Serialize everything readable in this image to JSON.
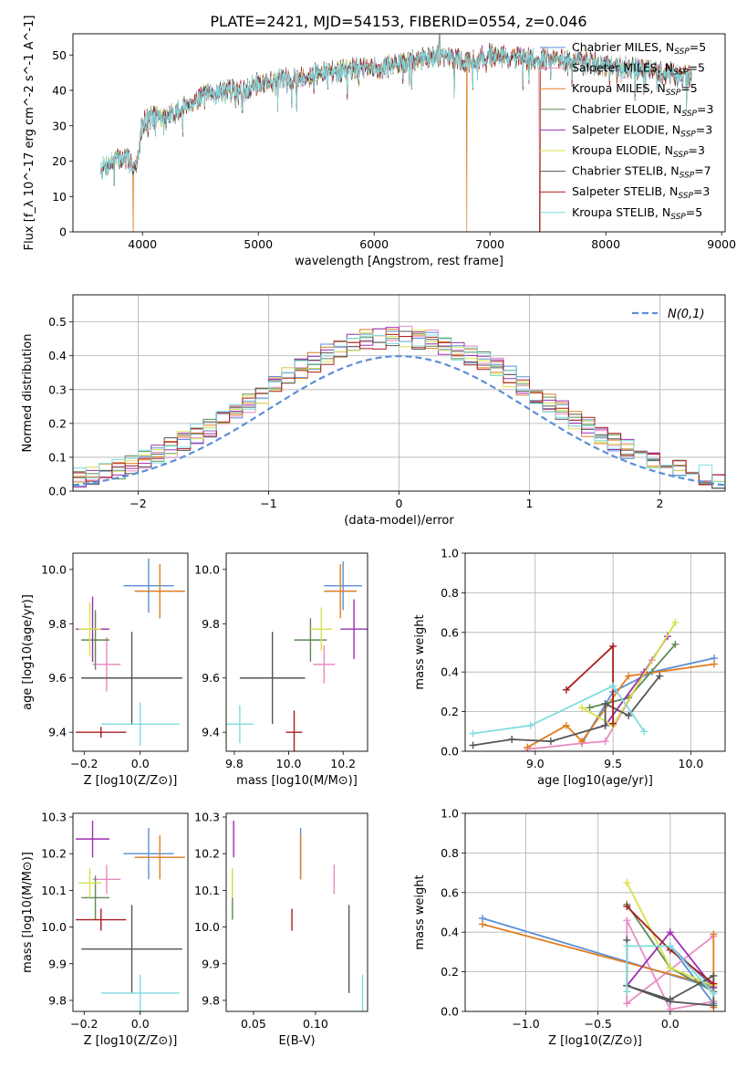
{
  "figure_title": "PLATE=2421, MJD=54153, FIBERID=0554, z=0.046",
  "colors": {
    "Chabrier MILES": "#5b8fd6",
    "Salpeter MILES": "#e98bc3",
    "Kroupa MILES": "#e07e20",
    "Chabrier ELODIE": "#5f8a55",
    "Salpeter ELODIE": "#9c2fb0",
    "Kroupa ELODIE": "#d8e04a",
    "Chabrier STELIB": "#555555",
    "Salpeter STELIB": "#a81d1d",
    "Kroupa STELIB": "#7fdce0",
    "gauss": "#5b8fd6"
  },
  "models": [
    {
      "name": "Chabrier MILES",
      "nssp": 5
    },
    {
      "name": "Salpeter MILES",
      "nssp": 5
    },
    {
      "name": "Kroupa MILES",
      "nssp": 5
    },
    {
      "name": "Chabrier ELODIE",
      "nssp": 3
    },
    {
      "name": "Salpeter ELODIE",
      "nssp": 3
    },
    {
      "name": "Kroupa ELODIE",
      "nssp": 3
    },
    {
      "name": "Chabrier STELIB",
      "nssp": 7
    },
    {
      "name": "Salpeter STELIB",
      "nssp": 3
    },
    {
      "name": "Kroupa STELIB",
      "nssp": 5
    }
  ],
  "chart_data": [
    {
      "id": "spectrum",
      "type": "line",
      "xlabel": "wavelength [Angstrom, rest frame]",
      "ylabel": "Flux [f_λ 10^-17 erg cm^-2 s^-1 A^-1]",
      "xlim": [
        3400,
        9030
      ],
      "ylim": [
        0,
        56
      ],
      "xticks": [
        4000,
        5000,
        6000,
        7000,
        8000,
        9000
      ],
      "yticks": [
        0,
        10,
        20,
        30,
        40,
        50
      ],
      "legend": "right",
      "continuum": {
        "x": [
          3650,
          3750,
          3850,
          3950,
          4000,
          4100,
          4200,
          4300,
          4400,
          4500,
          4700,
          4861,
          5000,
          5200,
          5400,
          5600,
          5800,
          6000,
          6300,
          6563,
          6800,
          7000,
          7200,
          7500,
          7800,
          8000,
          8300,
          8500,
          8700
        ],
        "y": [
          18,
          20,
          21,
          18,
          31,
          33,
          32,
          34,
          36,
          38,
          40,
          40,
          42,
          43,
          44,
          45,
          46,
          46,
          48,
          50,
          48,
          50,
          49,
          49,
          48,
          47,
          46,
          45,
          44
        ]
      },
      "drops": [
        {
          "model": "Kroupa MILES",
          "x": 3920,
          "from": 10
        },
        {
          "model": "Kroupa MILES",
          "x": 6800,
          "from": 47
        },
        {
          "model": "Salpeter STELIB",
          "x": 7430,
          "from": 49
        }
      ]
    },
    {
      "id": "residuals",
      "type": "step",
      "xlabel": "(data-model)/error",
      "ylabel": "Normed distribution",
      "xlim": [
        -2.5,
        2.5
      ],
      "ylim": [
        0,
        0.58
      ],
      "xticks": [
        -2,
        -1,
        0,
        1,
        2
      ],
      "yticks": [
        0.0,
        0.1,
        0.2,
        0.3,
        0.4,
        0.5
      ],
      "legend": "top-right",
      "gauss_label": "N(0,1)",
      "bin_width": 0.1
    },
    {
      "id": "age-vs-Z",
      "type": "errorbar",
      "xlabel": "Z [log10(Z/Z⊙)]",
      "ylabel": "age  [log10(age/yr)]",
      "xlim": [
        -0.24,
        0.17
      ],
      "ylim": [
        9.33,
        10.06
      ],
      "xticks": [
        -0.2,
        0.0
      ],
      "yticks": [
        9.4,
        9.6,
        9.8,
        10.0
      ],
      "points": [
        {
          "model": "Chabrier MILES",
          "x": 0.03,
          "xerr": 0.09,
          "y": 9.94,
          "yerr": 0.1
        },
        {
          "model": "Salpeter MILES",
          "x": -0.12,
          "xerr": 0.05,
          "y": 9.65,
          "yerr": 0.1
        },
        {
          "model": "Kroupa MILES",
          "x": 0.07,
          "xerr": 0.09,
          "y": 9.92,
          "yerr": 0.1
        },
        {
          "model": "Chabrier ELODIE",
          "x": -0.16,
          "xerr": 0.05,
          "y": 9.74,
          "yerr": 0.11
        },
        {
          "model": "Salpeter ELODIE",
          "x": -0.17,
          "xerr": 0.06,
          "y": 9.78,
          "yerr": 0.12
        },
        {
          "model": "Kroupa ELODIE",
          "x": -0.18,
          "xerr": 0.04,
          "y": 9.78,
          "yerr": 0.1
        },
        {
          "model": "Chabrier STELIB",
          "x": -0.03,
          "xerr": 0.18,
          "y": 9.6,
          "yerr": 0.17
        },
        {
          "model": "Salpeter STELIB",
          "x": -0.14,
          "xerr": 0.09,
          "y": 9.4,
          "yerr": 0.02
        },
        {
          "model": "Kroupa STELIB",
          "x": 0.0,
          "xerr": 0.14,
          "y": 9.43,
          "yerr": 0.08
        }
      ]
    },
    {
      "id": "age-vs-mass",
      "type": "errorbar",
      "xlabel": "mass [log10(M/M⊙)]",
      "ylabel": "",
      "xlim": [
        9.77,
        10.29
      ],
      "ylim": [
        9.33,
        10.06
      ],
      "xticks": [
        9.8,
        10.0,
        10.2
      ],
      "yticks": [
        9.4,
        9.6,
        9.8,
        10.0
      ],
      "points": [
        {
          "model": "Chabrier MILES",
          "x": 10.2,
          "xerr": 0.07,
          "y": 9.94,
          "yerr": 0.09
        },
        {
          "model": "Salpeter MILES",
          "x": 10.13,
          "xerr": 0.04,
          "y": 9.65,
          "yerr": 0.07
        },
        {
          "model": "Kroupa MILES",
          "x": 10.19,
          "xerr": 0.06,
          "y": 9.92,
          "yerr": 0.1
        },
        {
          "model": "Chabrier ELODIE",
          "x": 10.08,
          "xerr": 0.06,
          "y": 9.74,
          "yerr": 0.08
        },
        {
          "model": "Salpeter ELODIE",
          "x": 10.24,
          "xerr": 0.05,
          "y": 9.78,
          "yerr": 0.11
        },
        {
          "model": "Kroupa ELODIE",
          "x": 10.12,
          "xerr": 0.04,
          "y": 9.78,
          "yerr": 0.08
        },
        {
          "model": "Chabrier STELIB",
          "x": 9.94,
          "xerr": 0.12,
          "y": 9.6,
          "yerr": 0.17
        },
        {
          "model": "Salpeter STELIB",
          "x": 10.02,
          "xerr": 0.03,
          "y": 9.4,
          "yerr": 0.08
        },
        {
          "model": "Kroupa STELIB",
          "x": 9.82,
          "xerr": 0.05,
          "y": 9.43,
          "yerr": 0.07
        }
      ]
    },
    {
      "id": "mass-weight-vs-age",
      "type": "line",
      "xlabel": "age  [log10(age/yr)]",
      "ylabel": "mass weight",
      "xlim": [
        8.55,
        10.22
      ],
      "ylim": [
        0,
        1
      ],
      "xticks": [
        9.0,
        9.5,
        10.0
      ],
      "yticks": [
        0.0,
        0.2,
        0.4,
        0.6,
        0.8,
        1.0
      ],
      "series": [
        {
          "model": "Chabrier MILES",
          "x": [
            9.3,
            9.5,
            9.75,
            10.15
          ],
          "y": [
            0.04,
            0.3,
            0.4,
            0.47
          ]
        },
        {
          "model": "Salpeter MILES",
          "x": [
            8.95,
            9.3,
            9.45,
            9.75
          ],
          "y": [
            0.01,
            0.04,
            0.05,
            0.46
          ]
        },
        {
          "model": "Kroupa MILES",
          "x": [
            8.95,
            9.2,
            9.3,
            9.6,
            10.15
          ],
          "y": [
            0.02,
            0.13,
            0.05,
            0.38,
            0.44
          ]
        },
        {
          "model": "Chabrier ELODIE",
          "x": [
            9.35,
            9.6,
            9.9
          ],
          "y": [
            0.22,
            0.27,
            0.54
          ]
        },
        {
          "model": "Salpeter ELODIE",
          "x": [
            9.45,
            9.7,
            9.85
          ],
          "y": [
            0.13,
            0.4,
            0.58
          ]
        },
        {
          "model": "Kroupa ELODIE",
          "x": [
            9.3,
            9.5,
            9.9
          ],
          "y": [
            0.22,
            0.13,
            0.65
          ]
        },
        {
          "model": "Chabrier STELIB",
          "x": [
            8.6,
            8.85,
            9.1,
            9.45,
            9.45,
            9.6,
            9.8
          ],
          "y": [
            0.03,
            0.06,
            0.05,
            0.13,
            0.24,
            0.18,
            0.38
          ]
        },
        {
          "model": "Salpeter STELIB",
          "x": [
            9.2,
            9.5,
            9.5
          ],
          "y": [
            0.31,
            0.53,
            0.14
          ]
        },
        {
          "model": "Kroupa STELIB",
          "x": [
            8.6,
            8.97,
            9.5,
            9.7
          ],
          "y": [
            0.09,
            0.13,
            0.33,
            0.1
          ]
        }
      ]
    },
    {
      "id": "mass-vs-Z",
      "type": "errorbar",
      "xlabel": "Z [log10(Z/Z⊙)]",
      "ylabel": "mass [log10(M/M⊙)]",
      "xlim": [
        -0.24,
        0.17
      ],
      "ylim": [
        9.77,
        10.31
      ],
      "xticks": [
        -0.2,
        0.0
      ],
      "yticks": [
        9.8,
        9.9,
        10.0,
        10.1,
        10.2,
        10.3
      ],
      "points": [
        {
          "model": "Chabrier MILES",
          "x": 0.03,
          "xerr": 0.09,
          "y": 10.2,
          "yerr": 0.07
        },
        {
          "model": "Salpeter MILES",
          "x": -0.12,
          "xerr": 0.05,
          "y": 10.13,
          "yerr": 0.04
        },
        {
          "model": "Kroupa MILES",
          "x": 0.07,
          "xerr": 0.09,
          "y": 10.19,
          "yerr": 0.06
        },
        {
          "model": "Chabrier ELODIE",
          "x": -0.16,
          "xerr": 0.05,
          "y": 10.08,
          "yerr": 0.06
        },
        {
          "model": "Salpeter ELODIE",
          "x": -0.17,
          "xerr": 0.06,
          "y": 10.24,
          "yerr": 0.05
        },
        {
          "model": "Kroupa ELODIE",
          "x": -0.18,
          "xerr": 0.04,
          "y": 10.12,
          "yerr": 0.04
        },
        {
          "model": "Chabrier STELIB",
          "x": -0.03,
          "xerr": 0.18,
          "y": 9.94,
          "yerr": 0.12
        },
        {
          "model": "Salpeter STELIB",
          "x": -0.14,
          "xerr": 0.09,
          "y": 10.02,
          "yerr": 0.03
        },
        {
          "model": "Kroupa STELIB",
          "x": 0.0,
          "xerr": 0.14,
          "y": 9.82,
          "yerr": 0.05
        }
      ]
    },
    {
      "id": "mass-vs-ebv",
      "type": "errorbar",
      "xlabel": "E(B-V)",
      "ylabel": "",
      "xlim": [
        0.028,
        0.142
      ],
      "ylim": [
        9.77,
        10.31
      ],
      "xticks": [
        0.05,
        0.1
      ],
      "yticks": [
        9.8,
        9.9,
        10.0,
        10.1,
        10.2,
        10.3
      ],
      "points": [
        {
          "model": "Chabrier MILES",
          "x": 0.088,
          "xerr": 0,
          "y": 10.2,
          "yerr": 0.07
        },
        {
          "model": "Salpeter MILES",
          "x": 0.115,
          "xerr": 0,
          "y": 10.13,
          "yerr": 0.04
        },
        {
          "model": "Kroupa MILES",
          "x": 0.088,
          "xerr": 0,
          "y": 10.19,
          "yerr": 0.06
        },
        {
          "model": "Chabrier ELODIE",
          "x": 0.033,
          "xerr": 0,
          "y": 10.08,
          "yerr": 0.06
        },
        {
          "model": "Salpeter ELODIE",
          "x": 0.034,
          "xerr": 0,
          "y": 10.24,
          "yerr": 0.05
        },
        {
          "model": "Kroupa ELODIE",
          "x": 0.033,
          "xerr": 0,
          "y": 10.12,
          "yerr": 0.04
        },
        {
          "model": "Chabrier STELIB",
          "x": 0.127,
          "xerr": 0,
          "y": 9.94,
          "yerr": 0.12
        },
        {
          "model": "Salpeter STELIB",
          "x": 0.081,
          "xerr": 0,
          "y": 10.02,
          "yerr": 0.03
        },
        {
          "model": "Kroupa STELIB",
          "x": 0.138,
          "xerr": 0,
          "y": 9.82,
          "yerr": 0.05
        }
      ]
    },
    {
      "id": "mass-weight-vs-Z",
      "type": "line",
      "xlabel": "Z [log10(Z/Z⊙)]",
      "ylabel": "mass weight",
      "xlim": [
        -1.42,
        0.38
      ],
      "ylim": [
        0,
        1
      ],
      "xticks": [
        -1.0,
        -0.5,
        0.0
      ],
      "yticks": [
        0.0,
        0.2,
        0.4,
        0.6,
        0.8,
        1.0
      ],
      "series": [
        {
          "model": "Chabrier MILES",
          "x": [
            -1.3,
            0.3,
            0.0,
            0.3
          ],
          "y": [
            0.47,
            0.12,
            0.33,
            0.04
          ]
        },
        {
          "model": "Salpeter MILES",
          "x": [
            0.3,
            0.0,
            -0.3,
            -0.3,
            0.3
          ],
          "y": [
            0.05,
            0.01,
            0.46,
            0.04,
            0.38
          ]
        },
        {
          "model": "Kroupa MILES",
          "x": [
            -1.3,
            0.3,
            0.3,
            0.3
          ],
          "y": [
            0.44,
            0.13,
            0.02,
            0.39
          ]
        },
        {
          "model": "Chabrier ELODIE",
          "x": [
            -0.3,
            0.0,
            0.3
          ],
          "y": [
            0.54,
            0.22,
            0.1
          ]
        },
        {
          "model": "Salpeter ELODIE",
          "x": [
            -0.3,
            0.0,
            0.3
          ],
          "y": [
            0.13,
            0.4,
            0.12
          ]
        },
        {
          "model": "Kroupa ELODIE",
          "x": [
            -0.3,
            0.0,
            0.3
          ],
          "y": [
            0.65,
            0.22,
            0.13
          ]
        },
        {
          "model": "Chabrier STELIB",
          "x": [
            -0.3,
            -0.3,
            0.0,
            0.3,
            0.3,
            0.0,
            -0.3
          ],
          "y": [
            0.36,
            0.13,
            0.05,
            0.03,
            0.18,
            0.06,
            0.13
          ]
        },
        {
          "model": "Salpeter STELIB",
          "x": [
            -0.3,
            0.0,
            0.3
          ],
          "y": [
            0.53,
            0.31,
            0.14
          ]
        },
        {
          "model": "Kroupa STELIB",
          "x": [
            -0.3,
            -0.3,
            0.0,
            0.3
          ],
          "y": [
            0.1,
            0.33,
            0.33,
            0.09
          ]
        }
      ]
    }
  ]
}
